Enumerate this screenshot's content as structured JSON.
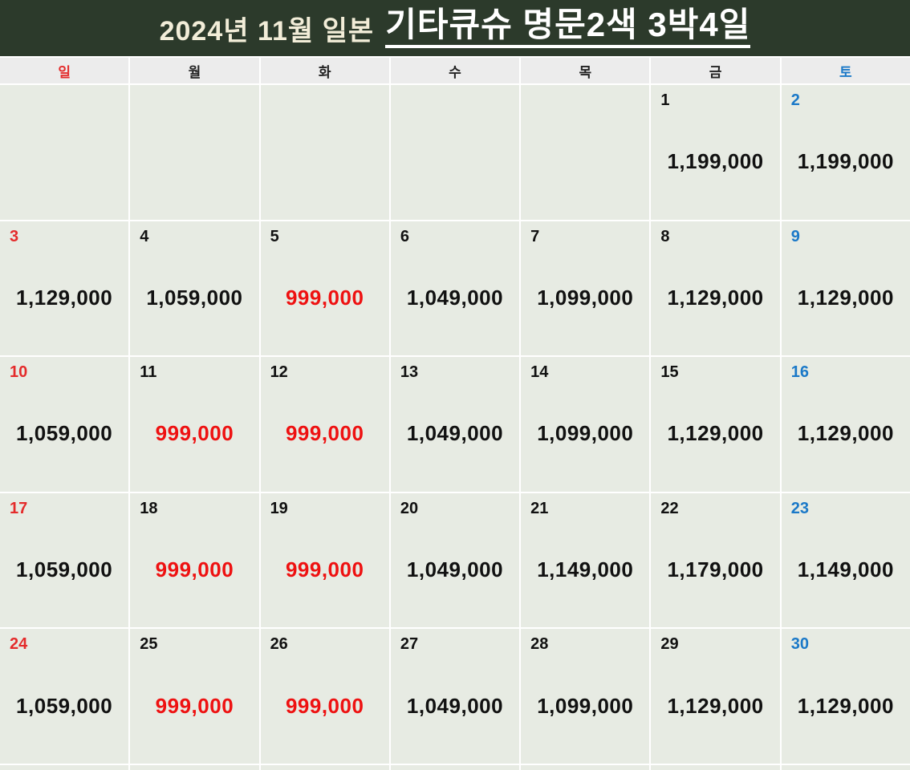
{
  "title": {
    "prefix": "2024년 11월 일본",
    "main": "기타큐슈 명문2색 3박4일"
  },
  "weekday_headers": [
    {
      "label": "일",
      "type": "sun"
    },
    {
      "label": "월",
      "type": ""
    },
    {
      "label": "화",
      "type": ""
    },
    {
      "label": "수",
      "type": ""
    },
    {
      "label": "목",
      "type": ""
    },
    {
      "label": "금",
      "type": ""
    },
    {
      "label": "토",
      "type": "sat"
    }
  ],
  "calendar": {
    "month": "2024-11",
    "weeks": [
      [
        {
          "day": "",
          "price": "",
          "day_type": "",
          "highlight": false
        },
        {
          "day": "",
          "price": "",
          "day_type": "",
          "highlight": false
        },
        {
          "day": "",
          "price": "",
          "day_type": "",
          "highlight": false
        },
        {
          "day": "",
          "price": "",
          "day_type": "",
          "highlight": false
        },
        {
          "day": "",
          "price": "",
          "day_type": "",
          "highlight": false
        },
        {
          "day": "1",
          "price": "1,199,000",
          "day_type": "",
          "highlight": false
        },
        {
          "day": "2",
          "price": "1,199,000",
          "day_type": "sat",
          "highlight": false
        }
      ],
      [
        {
          "day": "3",
          "price": "1,129,000",
          "day_type": "sun",
          "highlight": false
        },
        {
          "day": "4",
          "price": "1,059,000",
          "day_type": "",
          "highlight": false
        },
        {
          "day": "5",
          "price": "999,000",
          "day_type": "",
          "highlight": true
        },
        {
          "day": "6",
          "price": "1,049,000",
          "day_type": "",
          "highlight": false
        },
        {
          "day": "7",
          "price": "1,099,000",
          "day_type": "",
          "highlight": false
        },
        {
          "day": "8",
          "price": "1,129,000",
          "day_type": "",
          "highlight": false
        },
        {
          "day": "9",
          "price": "1,129,000",
          "day_type": "sat",
          "highlight": false
        }
      ],
      [
        {
          "day": "10",
          "price": "1,059,000",
          "day_type": "sun",
          "highlight": false
        },
        {
          "day": "11",
          "price": "999,000",
          "day_type": "",
          "highlight": true
        },
        {
          "day": "12",
          "price": "999,000",
          "day_type": "",
          "highlight": true
        },
        {
          "day": "13",
          "price": "1,049,000",
          "day_type": "",
          "highlight": false
        },
        {
          "day": "14",
          "price": "1,099,000",
          "day_type": "",
          "highlight": false
        },
        {
          "day": "15",
          "price": "1,129,000",
          "day_type": "",
          "highlight": false
        },
        {
          "day": "16",
          "price": "1,129,000",
          "day_type": "sat",
          "highlight": false
        }
      ],
      [
        {
          "day": "17",
          "price": "1,059,000",
          "day_type": "sun",
          "highlight": false
        },
        {
          "day": "18",
          "price": "999,000",
          "day_type": "",
          "highlight": true
        },
        {
          "day": "19",
          "price": "999,000",
          "day_type": "",
          "highlight": true
        },
        {
          "day": "20",
          "price": "1,049,000",
          "day_type": "",
          "highlight": false
        },
        {
          "day": "21",
          "price": "1,149,000",
          "day_type": "",
          "highlight": false
        },
        {
          "day": "22",
          "price": "1,179,000",
          "day_type": "",
          "highlight": false
        },
        {
          "day": "23",
          "price": "1,149,000",
          "day_type": "sat",
          "highlight": false
        }
      ],
      [
        {
          "day": "24",
          "price": "1,059,000",
          "day_type": "sun",
          "highlight": false
        },
        {
          "day": "25",
          "price": "999,000",
          "day_type": "",
          "highlight": true
        },
        {
          "day": "26",
          "price": "999,000",
          "day_type": "",
          "highlight": true
        },
        {
          "day": "27",
          "price": "1,049,000",
          "day_type": "",
          "highlight": false
        },
        {
          "day": "28",
          "price": "1,099,000",
          "day_type": "",
          "highlight": false
        },
        {
          "day": "29",
          "price": "1,129,000",
          "day_type": "",
          "highlight": false
        },
        {
          "day": "30",
          "price": "1,129,000",
          "day_type": "sat",
          "highlight": false
        }
      ],
      [
        {
          "day": "",
          "price": "",
          "day_type": "",
          "highlight": false
        },
        {
          "day": "",
          "price": "",
          "day_type": "",
          "highlight": false
        },
        {
          "day": "",
          "price": "",
          "day_type": "",
          "highlight": false
        },
        {
          "day": "",
          "price": "",
          "day_type": "",
          "highlight": false
        },
        {
          "day": "",
          "price": "",
          "day_type": "",
          "highlight": false
        },
        {
          "day": "",
          "price": "",
          "day_type": "",
          "highlight": false
        },
        {
          "day": "",
          "price": "",
          "day_type": "",
          "highlight": false
        }
      ]
    ]
  },
  "colors": {
    "header_bg": "#2c3a2b",
    "title_prefix": "#f2edd8",
    "title_main": "#ffffff",
    "weekday_bg": "#ececec",
    "cell_bg": "#e7ebe3",
    "sunday_red": "#e42b2b",
    "saturday_blue": "#1b79c8",
    "price_red": "#ee1111",
    "text_black": "#111111"
  }
}
